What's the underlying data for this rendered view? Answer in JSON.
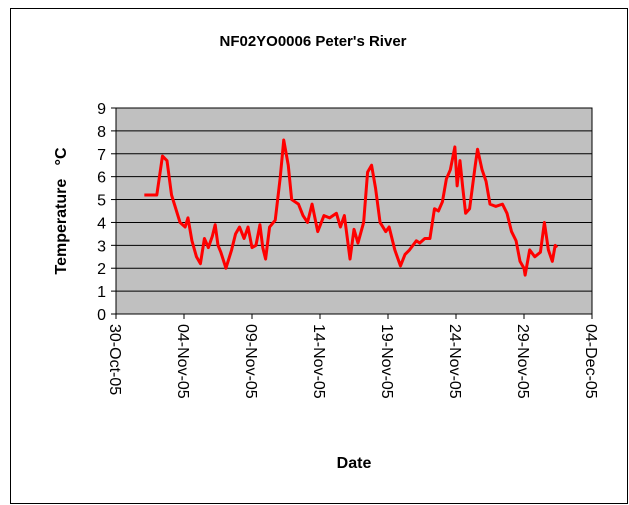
{
  "chart_data": {
    "type": "line",
    "title": "NF02YO0006 Peter's River",
    "x_label": "Date",
    "y_label": "Temperature   °C",
    "xlim": [
      "2005-10-30",
      "2005-12-04"
    ],
    "xticks": [
      {
        "value": "2005-10-30",
        "label": "30-Oct-05"
      },
      {
        "value": "2005-11-04",
        "label": "04-Nov-05"
      },
      {
        "value": "2005-11-09",
        "label": "09-Nov-05"
      },
      {
        "value": "2005-11-14",
        "label": "14-Nov-05"
      },
      {
        "value": "2005-11-19",
        "label": "19-Nov-05"
      },
      {
        "value": "2005-11-24",
        "label": "24-Nov-05"
      },
      {
        "value": "2005-11-29",
        "label": "29-Nov-05"
      },
      {
        "value": "2005-12-04",
        "label": "04-Dec-05"
      }
    ],
    "ylim": [
      0,
      9
    ],
    "yticks": [
      0,
      1,
      2,
      3,
      4,
      5,
      6,
      7,
      8,
      9
    ],
    "grid": true,
    "x": [
      "2005-11-01T02:00",
      "2005-11-02T00:00",
      "2005-11-02T10:00",
      "2005-11-02T18:00",
      "2005-11-03T02:00",
      "2005-11-03T07:00",
      "2005-11-03T17:00",
      "2005-11-04T02:00",
      "2005-11-04T07:00",
      "2005-11-04T14:00",
      "2005-11-04T22:00",
      "2005-11-05T05:00",
      "2005-11-05T12:00",
      "2005-11-05T19:00",
      "2005-11-06T02:00",
      "2005-11-06T07:00",
      "2005-11-06T12:00",
      "2005-11-06T17:00",
      "2005-11-07T02:00",
      "2005-11-07T12:00",
      "2005-11-07T19:00",
      "2005-11-08T02:00",
      "2005-11-08T10:00",
      "2005-11-08T17:00",
      "2005-11-09T00:00",
      "2005-11-09T07:00",
      "2005-11-09T14:00",
      "2005-11-09T19:00",
      "2005-11-10T00:00",
      "2005-11-10T07:00",
      "2005-11-10T17:00",
      "2005-11-11T02:00",
      "2005-11-11T08:00",
      "2005-11-11T16:00",
      "2005-11-11T22:00",
      "2005-11-12T10:00",
      "2005-11-12T18:00",
      "2005-11-13T02:00",
      "2005-11-13T10:00",
      "2005-11-13T20:00",
      "2005-11-14T07:00",
      "2005-11-14T17:00",
      "2005-11-15T05:00",
      "2005-11-15T12:00",
      "2005-11-15T19:00",
      "2005-11-16T05:00",
      "2005-11-16T12:00",
      "2005-11-16T19:00",
      "2005-11-17T05:00",
      "2005-11-17T12:00",
      "2005-11-17T19:00",
      "2005-11-18T02:00",
      "2005-11-18T10:00",
      "2005-11-18T20:00",
      "2005-11-19T02:00",
      "2005-11-19T12:00",
      "2005-11-19T22:00",
      "2005-11-20T06:00",
      "2005-11-20T14:00",
      "2005-11-21T02:00",
      "2005-11-21T08:00",
      "2005-11-21T17:00",
      "2005-11-22T02:00",
      "2005-11-22T10:00",
      "2005-11-22T17:00",
      "2005-11-23T00:00",
      "2005-11-23T07:00",
      "2005-11-23T14:00",
      "2005-11-23T22:00",
      "2005-11-24T02:00",
      "2005-11-24T07:00",
      "2005-11-24T12:00",
      "2005-11-24T17:00",
      "2005-11-25T00:00",
      "2005-11-25T10:00",
      "2005-11-25T14:00",
      "2005-11-25T22:00",
      "2005-11-26T05:00",
      "2005-11-26T12:00",
      "2005-11-26T22:00",
      "2005-11-27T10:00",
      "2005-11-27T18:00",
      "2005-11-28T02:00",
      "2005-11-28T10:00",
      "2005-11-28T17:00",
      "2005-11-29T00:00",
      "2005-11-29T02:00",
      "2005-11-29T10:00",
      "2005-11-29T19:00",
      "2005-11-30T05:00",
      "2005-11-30T12:00",
      "2005-11-30T19:00",
      "2005-12-01T02:00",
      "2005-12-01T07:00",
      "2005-12-01T10:00"
    ],
    "series": [
      {
        "color": "#ff0000",
        "values": [
          5.2,
          5.2,
          6.9,
          6.7,
          5.2,
          4.8,
          4.0,
          3.8,
          4.2,
          3.2,
          2.5,
          2.2,
          3.3,
          2.9,
          3.4,
          3.9,
          3.0,
          2.7,
          2.0,
          2.8,
          3.5,
          3.8,
          3.3,
          3.8,
          2.9,
          3.0,
          3.9,
          2.9,
          2.4,
          3.8,
          4.1,
          6.0,
          7.6,
          6.5,
          5.0,
          4.8,
          4.3,
          4.0,
          4.8,
          3.6,
          4.3,
          4.2,
          4.4,
          3.8,
          4.3,
          2.4,
          3.7,
          3.1,
          4.0,
          6.2,
          6.5,
          5.5,
          4.0,
          3.6,
          3.8,
          2.8,
          2.1,
          2.6,
          2.8,
          3.2,
          3.1,
          3.3,
          3.3,
          4.6,
          4.5,
          4.9,
          5.9,
          6.3,
          7.3,
          5.6,
          6.7,
          5.5,
          4.4,
          4.6,
          6.5,
          7.2,
          6.3,
          5.8,
          4.8,
          4.7,
          4.8,
          4.4,
          3.6,
          3.2,
          2.3,
          2.0,
          1.7,
          2.8,
          2.5,
          2.7,
          4.0,
          2.8,
          2.3,
          3.0,
          2.9
        ]
      }
    ]
  }
}
